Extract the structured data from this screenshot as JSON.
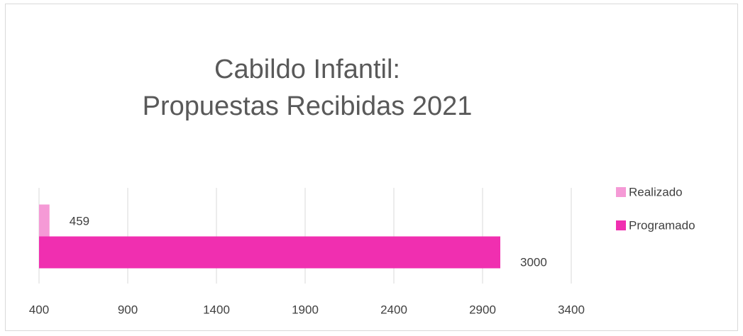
{
  "chart_data": {
    "type": "hbar",
    "title": [
      "Cabildo  Infantil:",
      "Propuestas Recibidas 2021"
    ],
    "categories": [
      null
    ],
    "series": [
      {
        "name": "Realizado",
        "color": "#f59ad6",
        "values": [
          459
        ]
      },
      {
        "name": "Programado",
        "color": "#f02fb0",
        "values": [
          3000
        ]
      }
    ],
    "xlim": [
      400,
      3400
    ],
    "xticks": [
      400,
      900,
      1400,
      1900,
      2400,
      2900,
      3400
    ],
    "grid": true,
    "legend": "right"
  }
}
